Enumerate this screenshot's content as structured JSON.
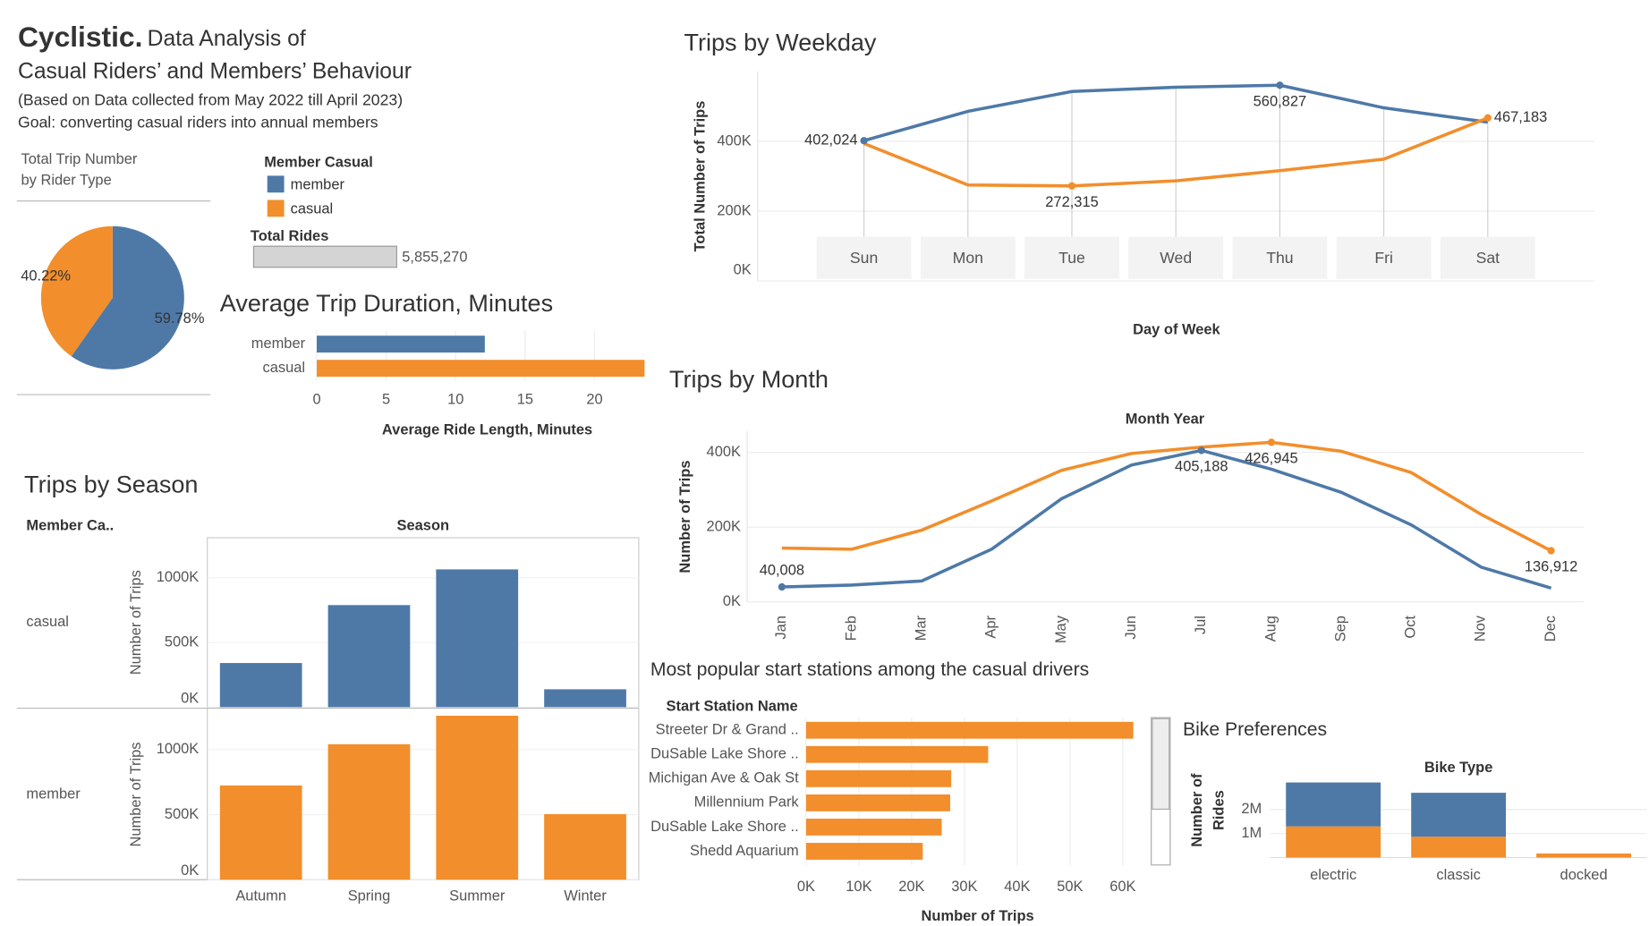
{
  "header": {
    "brand": "Cyclistic.",
    "title_line1": "Data Analysis of",
    "title_line2": "Casual Riders’ and Members’ Behaviour",
    "subtitle": "(Based on Data collected from May 2022 till April 2023)",
    "goal": "Goal: converting casual riders into annual members"
  },
  "legend": {
    "title": "Member Casual",
    "items": [
      {
        "name": "member",
        "color": "#4e79a7"
      },
      {
        "name": "casual",
        "color": "#f28e2b"
      }
    ]
  },
  "chart_data": [
    {
      "type": "pie",
      "title": [
        "Total Trip Number",
        "by Rider Type"
      ],
      "categories": [
        "member",
        "casual"
      ],
      "values": [
        59.78,
        40.22
      ],
      "value_labels": [
        "59.78%",
        "40.22%"
      ],
      "colors": [
        "#4e79a7",
        "#f28e2b"
      ]
    },
    {
      "type": "meter",
      "title": "Total Rides",
      "values": [
        5855270
      ],
      "value_labels": [
        "5,855,270"
      ],
      "color": "#d4d4d4"
    },
    {
      "type": "hbar",
      "title": "Average Trip Duration, Minutes",
      "xlabel": "Average Ride Length, Minutes",
      "categories": [
        "member",
        "casual"
      ],
      "values": [
        12.1,
        23.6
      ],
      "colors": [
        "#4e79a7",
        "#f28e2b"
      ],
      "xlim": [
        0,
        23.7
      ],
      "xticks": [
        0,
        5,
        10,
        15,
        20
      ],
      "grid": true
    },
    {
      "type": "line",
      "title": "Trips by Weekday",
      "xlabel": "Day of Week",
      "ylabel": "Total Number of Trips",
      "categories": [
        "Sun",
        "Mon",
        "Tue",
        "Wed",
        "Thu",
        "Fri",
        "Sat"
      ],
      "series": [
        {
          "name": "member",
          "color": "#4e79a7",
          "values": [
            402024,
            486000,
            543000,
            555000,
            560827,
            496000,
            455000
          ],
          "value_labels": [
            "402,024",
            null,
            null,
            null,
            "560,827",
            null,
            null
          ]
        },
        {
          "name": "casual",
          "color": "#f28e2b",
          "values": [
            394000,
            275000,
            272315,
            287000,
            316000,
            349000,
            467183
          ],
          "value_labels": [
            null,
            null,
            "272,315",
            null,
            null,
            null,
            "467,183"
          ]
        }
      ],
      "ylim": [
        0,
        600000
      ],
      "yticks": [
        {
          "value": 0,
          "label": "0K"
        },
        {
          "value": 200000,
          "label": "200K"
        },
        {
          "value": 400000,
          "label": "400K"
        }
      ],
      "grid": true
    },
    {
      "type": "line",
      "title": "Trips by Month",
      "header": "Month Year",
      "ylabel": "Number of Trips",
      "categories": [
        "Jan",
        "Feb",
        "Mar",
        "Apr",
        "May",
        "Jun",
        "Jul",
        "Aug",
        "Sep",
        "Oct",
        "Nov",
        "Dec"
      ],
      "series": [
        {
          "name": "member",
          "color": "#4e79a7",
          "values": [
            40008,
            45000,
            56000,
            141000,
            276000,
            366000,
            405188,
            355000,
            293000,
            206000,
            93000,
            37000
          ],
          "value_labels": [
            "40,008",
            null,
            null,
            null,
            null,
            null,
            "405,188",
            null,
            null,
            null,
            null,
            null
          ]
        },
        {
          "name": "casual",
          "color": "#f28e2b",
          "values": [
            144000,
            141000,
            192000,
            270000,
            352000,
            397000,
            414000,
            426945,
            403000,
            346000,
            234000,
            136912
          ],
          "value_labels": [
            null,
            null,
            null,
            null,
            null,
            null,
            null,
            "426,945",
            null,
            null,
            null,
            "136,912"
          ]
        }
      ],
      "ylim": [
        0,
        456000
      ],
      "yticks": [
        {
          "value": 0,
          "label": "0K"
        },
        {
          "value": 200000,
          "label": "200K"
        },
        {
          "value": 400000,
          "label": "400K"
        }
      ],
      "grid": true
    },
    {
      "type": "bar",
      "title": "Trips by Season",
      "row_header": "Member Ca..",
      "header": "Season",
      "ylabel": "Number of Trips",
      "categories": [
        "Autumn",
        "Spring",
        "Summer",
        "Winter"
      ],
      "rows": [
        {
          "name": "casual",
          "color": "#4e79a7",
          "values": [
            341000,
            789000,
            1065000,
            138000
          ]
        },
        {
          "name": "member",
          "color": "#f28e2b",
          "values": [
            724000,
            1041000,
            1260000,
            504000
          ]
        }
      ],
      "ylim": [
        0,
        1310000
      ],
      "yticks": [
        {
          "value": 0,
          "label": "0K"
        },
        {
          "value": 500000,
          "label": "500K"
        },
        {
          "value": 1000000,
          "label": "1000K"
        }
      ],
      "grid": true
    },
    {
      "type": "hbar",
      "title": "Most popular start stations among the casual drivers",
      "header": "Start Station Name",
      "xlabel": "Number of Trips",
      "categories": [
        "Streeter Dr & Grand ..",
        "DuSable Lake Shore ..",
        "Michigan Ave & Oak St",
        "Millennium Park",
        "DuSable Lake Shore ..",
        "Shedd Aquarium"
      ],
      "values": [
        62000,
        34500,
        27500,
        27300,
        25700,
        22100
      ],
      "color": "#f28e2b",
      "xlim": [
        0,
        64000
      ],
      "xticks": [
        {
          "value": 0,
          "label": "0K"
        },
        {
          "value": 10000,
          "label": "10K"
        },
        {
          "value": 20000,
          "label": "20K"
        },
        {
          "value": 30000,
          "label": "30K"
        },
        {
          "value": 40000,
          "label": "40K"
        },
        {
          "value": 50000,
          "label": "50K"
        },
        {
          "value": 60000,
          "label": "60K"
        }
      ],
      "grid": true
    },
    {
      "type": "stacked-bar",
      "title": "Bike Preferences",
      "header": "Bike Type",
      "ylabel": [
        "Number of",
        "Rides"
      ],
      "categories": [
        "electric",
        "classic",
        "docked"
      ],
      "series": [
        {
          "name": "casual",
          "color": "#f28e2b",
          "values": [
            1300000,
            870000,
            170000
          ]
        },
        {
          "name": "member",
          "color": "#4e79a7",
          "values": [
            1830000,
            1830000,
            0
          ]
        }
      ],
      "ylim": [
        0,
        3200000
      ],
      "yticks": [
        {
          "value": 1000000,
          "label": "1M"
        },
        {
          "value": 2000000,
          "label": "2M"
        }
      ],
      "grid": true
    }
  ]
}
